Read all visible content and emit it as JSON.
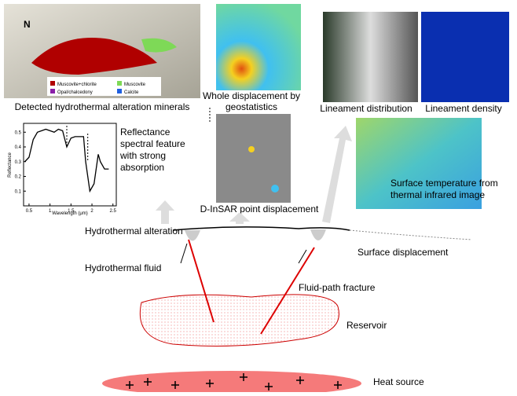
{
  "mineral_map": {
    "north": "N",
    "caption": "Detected hydrothermal alteration minerals",
    "legend": [
      {
        "name": "Muscovite+chlorite",
        "color": "#b00000"
      },
      {
        "name": "Muscovite",
        "color": "#7ed957"
      },
      {
        "name": "Opal/chalcedony",
        "color": "#8a1fa8"
      },
      {
        "name": "Calcite",
        "color": "#1f5fe0"
      }
    ]
  },
  "displacement_map": {
    "caption": [
      "Whole displacement by",
      "geostatistics"
    ]
  },
  "insar_map": {
    "caption": "D-InSAR point displacement"
  },
  "lineament": {
    "distribution_caption": "Lineament distribution",
    "density_caption": "Lineament density"
  },
  "temperature_map": {
    "caption": [
      "Surface temperature from",
      "thermal infrared image"
    ]
  },
  "spectrum": {
    "xlabel": "Wavelength (μm)",
    "ylabel": "Reflectance",
    "xlim": [
      0.37,
      2.58
    ],
    "ylim": [
      0,
      0.56
    ],
    "xticks": [
      0.5,
      1,
      1.5,
      2,
      2.5
    ],
    "yticks": [
      0.1,
      0.2,
      0.3,
      0.4,
      0.5
    ],
    "x": [
      0.4,
      0.5,
      0.6,
      0.7,
      0.9,
      1.1,
      1.2,
      1.3,
      1.4,
      1.5,
      1.6,
      1.8,
      1.85,
      1.95,
      2.05,
      2.15,
      2.2,
      2.3,
      2.4
    ],
    "y": [
      0.3,
      0.33,
      0.45,
      0.5,
      0.52,
      0.5,
      0.52,
      0.51,
      0.4,
      0.46,
      0.47,
      0.47,
      0.3,
      0.1,
      0.15,
      0.35,
      0.3,
      0.25,
      0.25
    ],
    "description": [
      "Reflectance",
      "spectral feature",
      "with strong",
      "absorption"
    ]
  },
  "cross_section": {
    "alteration": "Hydrothermal alteration",
    "surface_displacement": "Surface displacement",
    "fluid": "Hydrothermal fluid",
    "fracture": "Fluid-path fracture",
    "reservoir": "Reservoir",
    "heat_source": "Heat source"
  }
}
